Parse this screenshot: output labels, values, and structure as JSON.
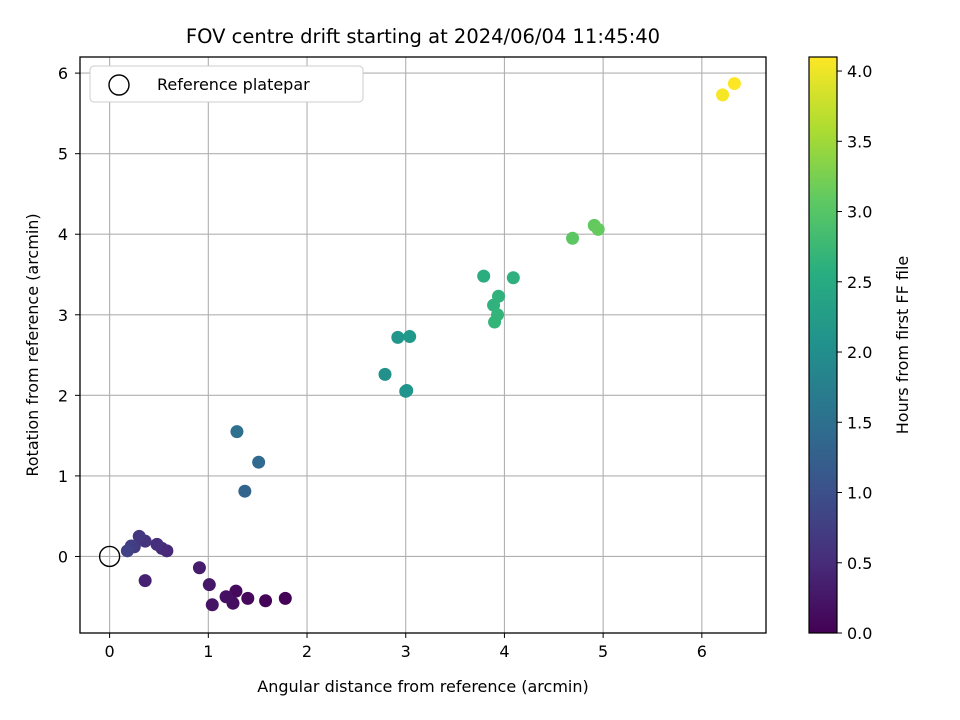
{
  "chart_data": {
    "type": "scatter",
    "title": "FOV centre drift starting at 2024/06/04 11:45:40",
    "xlabel": "Angular distance from reference (arcmin)",
    "ylabel": "Rotation from reference (arcmin)",
    "xlim": [
      -0.3,
      6.65
    ],
    "ylim": [
      -0.95,
      6.2
    ],
    "xticks": [
      0,
      1,
      2,
      3,
      4,
      5,
      6
    ],
    "yticks": [
      0,
      1,
      2,
      3,
      4,
      5,
      6
    ],
    "grid": true,
    "legend": {
      "location": "top-left",
      "entries": [
        "Reference platepar"
      ]
    },
    "reference_point": {
      "x": 0,
      "y": 0,
      "label": "Reference platepar"
    },
    "colorbar": {
      "label": "Hours from first FF file",
      "colormap": "viridis",
      "range": [
        0,
        4.1
      ],
      "ticks": [
        "0.0",
        "0.5",
        "1.0",
        "1.5",
        "2.0",
        "2.5",
        "3.0",
        "3.5",
        "4.0"
      ]
    },
    "points": [
      {
        "x": 1.78,
        "y": -0.52,
        "c": 0.02
      },
      {
        "x": 1.58,
        "y": -0.55,
        "c": 0.05
      },
      {
        "x": 1.4,
        "y": -0.52,
        "c": 0.08
      },
      {
        "x": 1.28,
        "y": -0.43,
        "c": 0.11
      },
      {
        "x": 1.25,
        "y": -0.58,
        "c": 0.14
      },
      {
        "x": 1.18,
        "y": -0.5,
        "c": 0.17
      },
      {
        "x": 1.04,
        "y": -0.6,
        "c": 0.22
      },
      {
        "x": 1.01,
        "y": -0.35,
        "c": 0.26
      },
      {
        "x": 0.91,
        "y": -0.14,
        "c": 0.32
      },
      {
        "x": 0.36,
        "y": -0.3,
        "c": 0.38
      },
      {
        "x": 0.58,
        "y": 0.07,
        "c": 0.45
      },
      {
        "x": 0.53,
        "y": 0.1,
        "c": 0.5
      },
      {
        "x": 0.48,
        "y": 0.15,
        "c": 0.55
      },
      {
        "x": 0.36,
        "y": 0.19,
        "c": 0.6
      },
      {
        "x": 0.3,
        "y": 0.25,
        "c": 0.65
      },
      {
        "x": 0.25,
        "y": 0.12,
        "c": 0.7
      },
      {
        "x": 0.22,
        "y": 0.13,
        "c": 0.75
      },
      {
        "x": 0.18,
        "y": 0.07,
        "c": 0.8
      },
      {
        "x": 1.37,
        "y": 0.81,
        "c": 1.3
      },
      {
        "x": 1.51,
        "y": 1.17,
        "c": 1.4
      },
      {
        "x": 1.29,
        "y": 1.55,
        "c": 1.5
      },
      {
        "x": 2.79,
        "y": 2.26,
        "c": 2.05
      },
      {
        "x": 3.0,
        "y": 2.05,
        "c": 2.1
      },
      {
        "x": 3.01,
        "y": 2.06,
        "c": 2.12
      },
      {
        "x": 2.92,
        "y": 2.72,
        "c": 2.15
      },
      {
        "x": 3.04,
        "y": 2.73,
        "c": 2.2
      },
      {
        "x": 3.79,
        "y": 3.48,
        "c": 2.55
      },
      {
        "x": 4.09,
        "y": 3.46,
        "c": 2.6
      },
      {
        "x": 3.89,
        "y": 3.12,
        "c": 2.62
      },
      {
        "x": 3.94,
        "y": 3.23,
        "c": 2.65
      },
      {
        "x": 3.93,
        "y": 3.0,
        "c": 2.68
      },
      {
        "x": 3.9,
        "y": 2.91,
        "c": 2.7
      },
      {
        "x": 4.69,
        "y": 3.95,
        "c": 3.05
      },
      {
        "x": 4.91,
        "y": 4.11,
        "c": 3.1
      },
      {
        "x": 4.95,
        "y": 4.06,
        "c": 3.12
      },
      {
        "x": 6.21,
        "y": 5.73,
        "c": 4.05
      },
      {
        "x": 6.33,
        "y": 5.87,
        "c": 4.1
      }
    ]
  }
}
